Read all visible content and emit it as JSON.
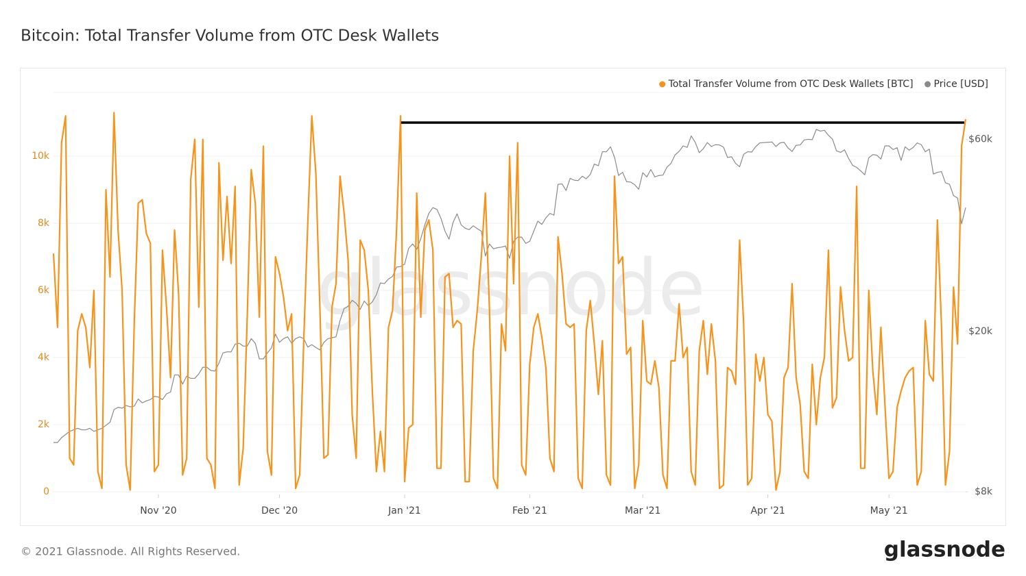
{
  "chart_data": {
    "type": "line",
    "title": "Bitcoin: Total Transfer Volume from OTC Desk Wallets",
    "watermark": "glassnode",
    "categories": [
      null,
      null,
      null,
      null,
      null,
      null,
      null,
      null,
      null,
      null,
      null,
      null,
      null,
      null,
      null,
      null,
      null,
      null,
      null,
      null,
      null,
      null,
      null,
      null,
      null,
      null,
      "Nov '20",
      null,
      null,
      null,
      null,
      null,
      null,
      null,
      null,
      null,
      null,
      null,
      null,
      null,
      null,
      null,
      null,
      null,
      null,
      null,
      null,
      null,
      null,
      null,
      null,
      null,
      null,
      null,
      null,
      null,
      "Dec '20",
      null,
      null,
      null,
      null,
      null,
      null,
      null,
      null,
      null,
      null,
      null,
      null,
      null,
      null,
      null,
      null,
      null,
      null,
      null,
      null,
      null,
      null,
      null,
      null,
      null,
      null,
      null,
      null,
      null,
      null,
      "Jan '21",
      null,
      null,
      null,
      null,
      null,
      null,
      null,
      null,
      null,
      null,
      null,
      null,
      null,
      null,
      null,
      null,
      null,
      null,
      null,
      null,
      null,
      null,
      null,
      null,
      null,
      null,
      null,
      null,
      null,
      null,
      "Feb '21",
      null,
      null,
      null,
      null,
      null,
      null,
      null,
      null,
      null,
      null,
      null,
      null,
      null,
      null,
      null,
      null,
      null,
      null,
      null,
      null,
      null,
      null,
      null,
      null,
      null,
      null,
      null,
      "Mar '21",
      null,
      null,
      null,
      null,
      null,
      null,
      null,
      null,
      null,
      null,
      null,
      null,
      null,
      null,
      null,
      null,
      null,
      null,
      null,
      null,
      null,
      null,
      null,
      null,
      null,
      null,
      null,
      null,
      null,
      null,
      "Apr '21",
      null,
      null,
      null,
      null,
      null,
      null,
      null,
      null,
      null,
      null,
      null,
      null,
      null,
      null,
      null,
      null,
      null,
      null,
      null,
      null,
      null,
      null,
      null,
      null,
      null,
      null,
      null,
      null,
      null,
      "May '21",
      null,
      null,
      null,
      null,
      null,
      null,
      null,
      null,
      null,
      null,
      null,
      null,
      null,
      null,
      null,
      null,
      null,
      null,
      null
    ],
    "series": [
      {
        "name": "Total Transfer Volume from OTC Desk Wallets [BTC]",
        "color": "#f7931a",
        "axis": "y",
        "values": [
          7100,
          4900,
          10400,
          11200,
          1000,
          800,
          4800,
          5300,
          4900,
          3700,
          6000,
          600,
          100,
          9000,
          6400,
          11300,
          7800,
          6000,
          800,
          50,
          5000,
          8600,
          8700,
          7700,
          7400,
          600,
          800,
          7200,
          5500,
          3400,
          7800,
          5900,
          500,
          1000,
          9300,
          10500,
          5500,
          10500,
          1000,
          800,
          100,
          9800,
          6900,
          8800,
          6800,
          9100,
          200,
          1300,
          5200,
          9600,
          8600,
          5200,
          10300,
          1200,
          500,
          7000,
          6500,
          5800,
          4800,
          5300,
          100,
          500,
          4500,
          8000,
          11200,
          9500,
          5500,
          1000,
          1100,
          5500,
          6200,
          9400,
          8300,
          6900,
          2300,
          1000,
          7500,
          7200,
          6000,
          3000,
          600,
          1800,
          600,
          4900,
          5400,
          7800,
          11200,
          300,
          1900,
          2000,
          8900,
          5200,
          7800,
          8100,
          7200,
          700,
          700,
          6400,
          6500,
          4900,
          5100,
          5000,
          300,
          300,
          4200,
          5400,
          7000,
          8900,
          5500,
          400,
          100,
          5000,
          4200,
          10000,
          6200,
          10400,
          800,
          500,
          3800,
          4900,
          5300,
          4600,
          3700,
          1000,
          600,
          7600,
          6500,
          5000,
          4900,
          5000,
          400,
          100,
          4800,
          5700,
          4400,
          2900,
          4500,
          500,
          200,
          9400,
          6800,
          7000,
          4100,
          4300,
          100,
          800,
          5100,
          3300,
          3200,
          3900,
          3100,
          500,
          100,
          3900,
          3900,
          5600,
          4000,
          4300,
          600,
          200,
          4200,
          5100,
          3500,
          5000,
          3900,
          100,
          200,
          3700,
          3600,
          3200,
          7500,
          5000,
          200,
          400,
          4100,
          3300,
          4000,
          2300,
          2100,
          50,
          600,
          3400,
          3700,
          6200,
          3400,
          2600,
          600,
          400,
          3800,
          2000,
          3400,
          4000,
          7200,
          2500,
          2800,
          6100,
          4800,
          3900,
          4000,
          9100,
          700,
          700,
          6000,
          3600,
          2300,
          4900,
          2600,
          400,
          600,
          2500,
          3000,
          3400,
          3600,
          3700,
          200,
          600,
          5100,
          3500,
          3300,
          8100,
          5000,
          200,
          1200,
          6100,
          4400,
          10300,
          11100
        ]
      },
      {
        "name": "Price [USD]",
        "color": "#8a8a8a",
        "axis": "y2",
        "values": [
          10600,
          10600,
          10900,
          11100,
          11300,
          11400,
          11500,
          11400,
          11400,
          11500,
          11300,
          11400,
          11500,
          11700,
          11900,
          12800,
          12970,
          12900,
          13100,
          13000,
          13050,
          13600,
          13300,
          13450,
          13550,
          13800,
          13750,
          13550,
          14000,
          14150,
          15600,
          15600,
          14800,
          15500,
          15300,
          15300,
          15700,
          16300,
          16300,
          16000,
          15950,
          16700,
          17700,
          17800,
          17800,
          18600,
          18700,
          18400,
          18400,
          19200,
          18700,
          17100,
          17100,
          17700,
          18200,
          19700,
          18800,
          19200,
          19400,
          18700,
          19200,
          19400,
          19200,
          18300,
          18550,
          18250,
          18000,
          18800,
          19200,
          19300,
          19400,
          21300,
          22800,
          23100,
          23900,
          23500,
          22700,
          23800,
          23200,
          23700,
          24700,
          26400,
          26300,
          27000,
          27400,
          28900,
          29000,
          29400,
          32200,
          33000,
          32000,
          34000,
          36800,
          39300,
          40600,
          40200,
          38200,
          35500,
          33900,
          37300,
          39200,
          36800,
          36100,
          35800,
          36600,
          36000,
          35500,
          30800,
          33000,
          32100,
          32300,
          32400,
          32600,
          30400,
          33500,
          34300,
          34300,
          33100,
          33500,
          35500,
          37600,
          36900,
          38300,
          39300,
          38900,
          46400,
          46500,
          44800,
          48000,
          47500,
          47400,
          48600,
          47900,
          49100,
          52100,
          51600,
          55900,
          55900,
          57500,
          54200,
          48800,
          49700,
          47100,
          47000,
          46300,
          45100,
          49600,
          48400,
          50500,
          48400,
          48800,
          48900,
          51200,
          52300,
          54900,
          56000,
          57800,
          57300,
          61200,
          59000,
          55600,
          56900,
          58900,
          57600,
          58200,
          58100,
          57400,
          54100,
          54300,
          52300,
          51300,
          55100,
          55900,
          55800,
          57600,
          58800,
          58900,
          59000,
          59100,
          57600,
          58800,
          59000,
          57100,
          56000,
          58000,
          58100,
          59800,
          60000,
          59900,
          63500,
          62900,
          63200,
          61400,
          60100,
          56200,
          55700,
          56500,
          53800,
          51700,
          51100,
          50100,
          49000,
          54000,
          55000,
          54800,
          53600,
          57800,
          57800,
          56600,
          57200,
          53200,
          57500,
          56400,
          57300,
          58800,
          58200,
          55900,
          56700,
          49200,
          49700,
          49900,
          46800,
          46400,
          43500,
          42900,
          37000,
          40600
        ]
      }
    ],
    "ylim": [
      0,
      12000
    ],
    "yticks": [
      0,
      {
        "value": 2000,
        "label": "2k"
      },
      {
        "value": 4000,
        "label": "4k"
      },
      {
        "value": 6000,
        "label": "6k"
      },
      {
        "value": 8000,
        "label": "8k"
      },
      {
        "value": 10000,
        "label": "10k"
      }
    ],
    "y2lim": [
      8000,
      80000
    ],
    "y2ticks": [
      {
        "value": 8000,
        "label": "$8k"
      },
      {
        "value": 20000,
        "label": "$20k"
      },
      {
        "value": 60000,
        "label": "$60k"
      }
    ],
    "y2_log": true,
    "grid": true,
    "legend": "top-right",
    "reference_line": 11000
  },
  "footer": "© 2021 Glassnode. All Rights Reserved.",
  "logo": "glassnode"
}
